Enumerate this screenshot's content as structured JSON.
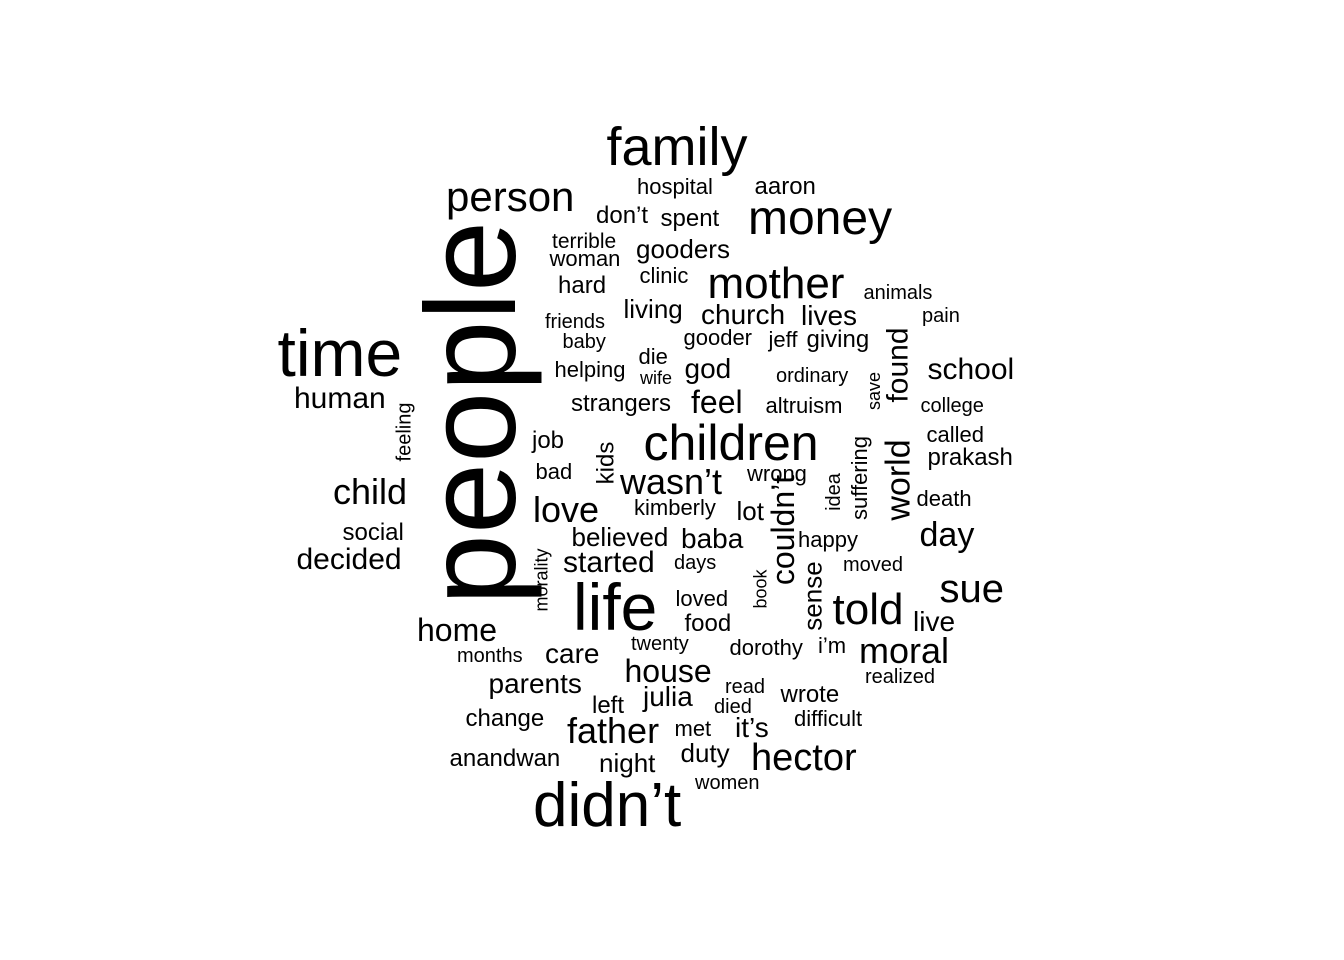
{
  "title": "",
  "colors": {
    "background": "#ffffff",
    "text": "#000000"
  },
  "words": [
    {
      "text": "people",
      "weight": 10
    },
    {
      "text": "family",
      "weight": 5.2
    },
    {
      "text": "time",
      "weight": 6.4
    },
    {
      "text": "didn’t",
      "weight": 6.0
    },
    {
      "text": "life",
      "weight": 6.4
    },
    {
      "text": "children",
      "weight": 5.0
    },
    {
      "text": "money",
      "weight": 4.8
    },
    {
      "text": "mother",
      "weight": 4.5
    },
    {
      "text": "person",
      "weight": 4.3
    },
    {
      "text": "world",
      "weight": 3.7
    },
    {
      "text": "hector",
      "weight": 3.9
    },
    {
      "text": "sue",
      "weight": 3.9
    },
    {
      "text": "told",
      "weight": 4.2
    },
    {
      "text": "father",
      "weight": 3.8
    },
    {
      "text": "wasn’t",
      "weight": 3.5
    },
    {
      "text": "moral",
      "weight": 3.5
    },
    {
      "text": "child",
      "weight": 3.5
    },
    {
      "text": "love",
      "weight": 3.5
    },
    {
      "text": "couldn’t",
      "weight": 3.3
    },
    {
      "text": "house",
      "weight": 3.1
    },
    {
      "text": "feel",
      "weight": 3.1
    },
    {
      "text": "day",
      "weight": 3.2
    },
    {
      "text": "home",
      "weight": 3.2
    },
    {
      "text": "found",
      "weight": 2.9
    },
    {
      "text": "school",
      "weight": 2.9
    },
    {
      "text": "started",
      "weight": 3.0
    },
    {
      "text": "decided",
      "weight": 2.9
    },
    {
      "text": "church",
      "weight": 2.8
    },
    {
      "text": "human",
      "weight": 2.9
    },
    {
      "text": "sense",
      "weight": 2.6
    },
    {
      "text": "care",
      "weight": 2.7
    },
    {
      "text": "parents",
      "weight": 2.7
    },
    {
      "text": "julia",
      "weight": 2.7
    },
    {
      "text": "baba",
      "weight": 2.7
    },
    {
      "text": "god",
      "weight": 2.7
    },
    {
      "text": "live",
      "weight": 2.6
    },
    {
      "text": "lives",
      "weight": 2.6
    },
    {
      "text": "it’s",
      "weight": 2.6
    },
    {
      "text": "believed",
      "weight": 2.4
    },
    {
      "text": "living",
      "weight": 2.5
    },
    {
      "text": "gooders",
      "weight": 2.4
    },
    {
      "text": "strangers",
      "weight": 2.3
    },
    {
      "text": "prakash",
      "weight": 2.4
    },
    {
      "text": "lot",
      "weight": 2.4
    },
    {
      "text": "duty",
      "weight": 2.4
    },
    {
      "text": "wrote",
      "weight": 2.3
    },
    {
      "text": "aaron",
      "weight": 2.3
    },
    {
      "text": "night",
      "weight": 2.4
    },
    {
      "text": "giving",
      "weight": 2.3
    },
    {
      "text": "kids",
      "weight": 2.3
    },
    {
      "text": "suffering",
      "weight": 2.2
    },
    {
      "text": "altruism",
      "weight": 2.2
    },
    {
      "text": "death",
      "weight": 2.2
    },
    {
      "text": "called",
      "weight": 2.2
    },
    {
      "text": "spent",
      "weight": 2.2
    },
    {
      "text": "don’t",
      "weight": 2.2
    },
    {
      "text": "hospital",
      "weight": 2.1
    },
    {
      "text": "social",
      "weight": 2.2
    },
    {
      "text": "change",
      "weight": 2.2
    },
    {
      "text": "anandwan",
      "weight": 2.2
    },
    {
      "text": "food",
      "weight": 2.2
    },
    {
      "text": "loved",
      "weight": 2.1
    },
    {
      "text": "dorothy",
      "weight": 2.2
    },
    {
      "text": "i’m",
      "weight": 2.2
    },
    {
      "text": "difficult",
      "weight": 2.1
    },
    {
      "text": "kimberly",
      "weight": 2.1
    },
    {
      "text": "job",
      "weight": 2.2
    },
    {
      "text": "bad",
      "weight": 2.1
    },
    {
      "text": "hard",
      "weight": 2.2
    },
    {
      "text": "helping",
      "weight": 2.0
    },
    {
      "text": "wrong",
      "weight": 2.0
    },
    {
      "text": "idea",
      "weight": 2.0
    },
    {
      "text": "happy",
      "weight": 2.0
    },
    {
      "text": "moved",
      "weight": 2.0
    },
    {
      "text": "left",
      "weight": 2.1
    },
    {
      "text": "met",
      "weight": 2.1
    },
    {
      "text": "college",
      "weight": 2.0
    },
    {
      "text": "animals",
      "weight": 2.0
    },
    {
      "text": "clinic",
      "weight": 2.0
    },
    {
      "text": "woman",
      "weight": 2.0
    },
    {
      "text": "terrible",
      "weight": 1.9
    },
    {
      "text": "feeling",
      "weight": 1.9
    },
    {
      "text": "friends",
      "weight": 1.9
    },
    {
      "text": "gooder",
      "weight": 2.0
    },
    {
      "text": "jeff",
      "weight": 2.0
    },
    {
      "text": "die",
      "weight": 2.0
    },
    {
      "text": "save",
      "weight": 1.9
    },
    {
      "text": "morality",
      "weight": 1.8
    },
    {
      "text": "ordinary",
      "weight": 1.8
    },
    {
      "text": "baby",
      "weight": 1.8
    },
    {
      "text": "book",
      "weight": 1.8
    },
    {
      "text": "days",
      "weight": 1.8
    },
    {
      "text": "twenty",
      "weight": 1.8
    },
    {
      "text": "months",
      "weight": 1.8
    },
    {
      "text": "realized",
      "weight": 1.9
    },
    {
      "text": "read",
      "weight": 1.8
    },
    {
      "text": "died",
      "weight": 1.8
    },
    {
      "text": "women",
      "weight": 1.8
    },
    {
      "text": "pain",
      "weight": 1.8
    },
    {
      "text": "wife",
      "weight": 1.7
    }
  ]
}
